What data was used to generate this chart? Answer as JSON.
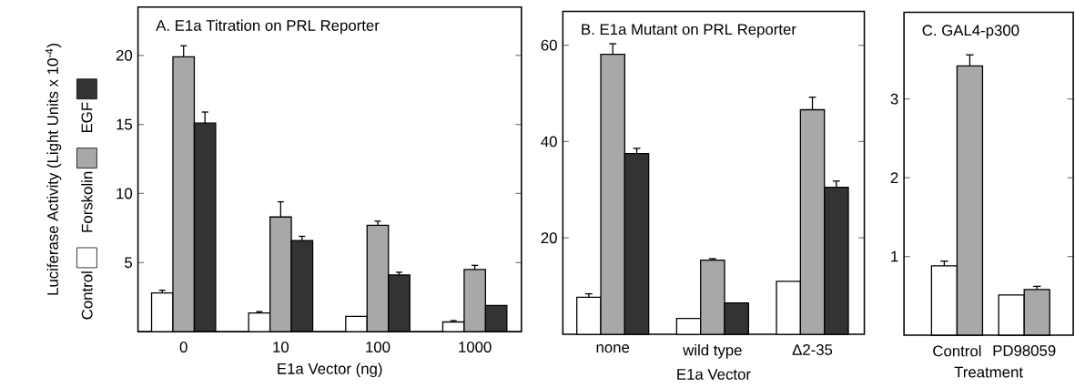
{
  "chart_data": [
    {
      "type": "bar",
      "title": "A. E1a Titration on PRL Reporter",
      "xlabel": "E1a Vector (ng)",
      "ylabel": "Luciferase Activity (Light Units x 10$^{-4}$)",
      "categories": [
        "0",
        "10",
        "100",
        "1000"
      ],
      "ylim": [
        0,
        23.5
      ],
      "yticks": [
        5,
        10,
        15,
        20
      ],
      "legend": "left",
      "series": [
        {
          "name": "Control",
          "color": "#ffffff",
          "values": [
            2.8,
            1.35,
            1.1,
            0.7
          ],
          "errors": [
            0.2,
            0.1,
            null,
            0.1
          ]
        },
        {
          "name": "Forskolin",
          "color": "#a8a8a8",
          "values": [
            19.9,
            8.3,
            7.7,
            4.5
          ],
          "errors": [
            0.8,
            1.1,
            0.3,
            0.3
          ]
        },
        {
          "name": "EGF",
          "color": "#333333",
          "values": [
            15.1,
            6.6,
            4.1,
            1.9
          ],
          "errors": [
            0.8,
            0.3,
            0.2,
            null
          ]
        }
      ]
    },
    {
      "type": "bar",
      "title": "B. E1a Mutant on PRL Reporter",
      "xlabel": "E1a Vector",
      "categories": [
        "none",
        "wild type",
        "Δ2-35"
      ],
      "ylim": [
        0,
        67
      ],
      "yticks": [
        20,
        40,
        60
      ],
      "series": [
        {
          "color": "#ffffff",
          "values": [
            7.7,
            3.3,
            11.0
          ],
          "errors": [
            0.7,
            null,
            null
          ]
        },
        {
          "color": "#a8a8a8",
          "values": [
            58.1,
            15.4,
            46.6
          ],
          "errors": [
            2.2,
            0.3,
            2.6
          ]
        },
        {
          "color": "#333333",
          "values": [
            37.5,
            6.5,
            30.5
          ],
          "errors": [
            1.1,
            null,
            1.3
          ]
        }
      ]
    },
    {
      "type": "bar",
      "title": "C. GAL4-p300",
      "xlabel": "Treatment",
      "categories": [
        "Control",
        "PD98059"
      ],
      "ylim": [
        0,
        4.1
      ],
      "yticks": [
        1,
        2,
        3
      ],
      "series": [
        {
          "color": "#ffffff",
          "values": [
            0.88,
            0.51
          ],
          "errors": [
            0.06,
            null
          ]
        },
        {
          "color": "#a8a8a8",
          "values": [
            3.42,
            0.58
          ],
          "errors": [
            0.14,
            0.04
          ]
        }
      ]
    }
  ]
}
